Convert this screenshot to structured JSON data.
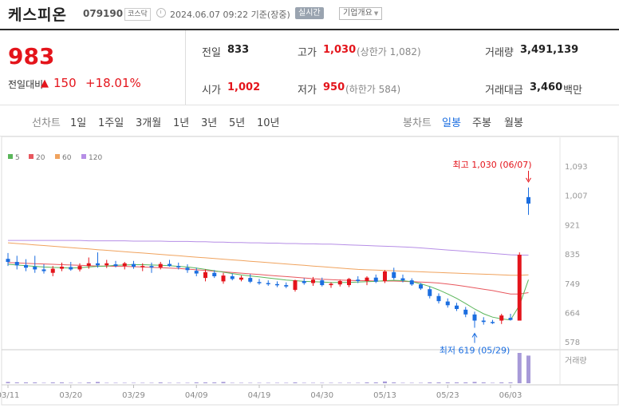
{
  "header": {
    "company_name": "케스피온",
    "company_code": "079190",
    "market_label": "코스닥",
    "datetime": "2024.06.07 09:22 기준(장중)",
    "realtime_label": "실시간",
    "overview_label": "기업개요"
  },
  "price": {
    "current": "983",
    "change_label": "전일대비",
    "change_symbol": "▲",
    "change_amount": "150",
    "change_percent": "+18.01%"
  },
  "stats": {
    "prev_close_label": "전일",
    "prev_close": "833",
    "open_label": "시가",
    "open": "1,002",
    "high_label": "고가",
    "high": "1,030",
    "upper_limit": "(상한가 1,082)",
    "low_label": "저가",
    "low": "950",
    "lower_limit": "(하한가 584)",
    "volume_label": "거래량",
    "volume": "3,491,139",
    "amount_label": "거래대금",
    "amount": "3,460",
    "amount_unit": "백만"
  },
  "periods": {
    "line_chart_label": "선차트",
    "line_tabs": [
      "1일",
      "1주일",
      "3개월",
      "1년",
      "3년",
      "5년",
      "10년"
    ],
    "candle_chart_label": "봉차트",
    "candle_tabs": [
      "일봉",
      "주봉",
      "월봉"
    ],
    "selected_candle_tab": "일봉"
  },
  "colors": {
    "up": "#e4141b",
    "down": "#1b6ee0",
    "ma5": "#5ab65a",
    "ma20": "#e8575e",
    "ma60": "#f0a35e",
    "ma120": "#b68ee6",
    "volume_bar": "#a79ad8"
  },
  "chart_data": {
    "type": "candlestick",
    "legend": [
      {
        "name": "5",
        "color": "#5ab65a"
      },
      {
        "name": "20",
        "color": "#e8575e"
      },
      {
        "name": "60",
        "color": "#f0a35e"
      },
      {
        "name": "120",
        "color": "#b68ee6"
      }
    ],
    "y_ticks": [
      1093,
      1007,
      921,
      835,
      749,
      664,
      578
    ],
    "ylim": [
      578,
      1093
    ],
    "x_ticks": [
      "03/11",
      "03/20",
      "03/29",
      "04/09",
      "04/19",
      "04/30",
      "05/13",
      "05/23",
      "06/03"
    ],
    "x_tick_index": [
      0,
      7,
      14,
      21,
      28,
      35,
      42,
      49,
      56
    ],
    "high_annotation": "최고 1,030 (06/07)",
    "low_annotation": "최저 619 (05/29)",
    "volume_label": "거래량",
    "candles": [
      {
        "o": 821,
        "h": 838,
        "l": 800,
        "c": 812
      },
      {
        "o": 812,
        "h": 830,
        "l": 790,
        "c": 802
      },
      {
        "o": 803,
        "h": 820,
        "l": 785,
        "c": 795
      },
      {
        "o": 798,
        "h": 830,
        "l": 780,
        "c": 790
      },
      {
        "o": 790,
        "h": 805,
        "l": 778,
        "c": 785
      },
      {
        "o": 780,
        "h": 800,
        "l": 770,
        "c": 792
      },
      {
        "o": 792,
        "h": 810,
        "l": 785,
        "c": 798
      },
      {
        "o": 797,
        "h": 812,
        "l": 786,
        "c": 790
      },
      {
        "o": 790,
        "h": 808,
        "l": 784,
        "c": 800
      },
      {
        "o": 800,
        "h": 825,
        "l": 792,
        "c": 808
      },
      {
        "o": 808,
        "h": 840,
        "l": 795,
        "c": 802
      },
      {
        "o": 802,
        "h": 818,
        "l": 794,
        "c": 808
      },
      {
        "o": 805,
        "h": 815,
        "l": 796,
        "c": 800
      },
      {
        "o": 800,
        "h": 812,
        "l": 790,
        "c": 808
      },
      {
        "o": 806,
        "h": 815,
        "l": 792,
        "c": 798
      },
      {
        "o": 798,
        "h": 808,
        "l": 785,
        "c": 800
      },
      {
        "o": 800,
        "h": 810,
        "l": 780,
        "c": 796
      },
      {
        "o": 796,
        "h": 812,
        "l": 790,
        "c": 806
      },
      {
        "o": 806,
        "h": 818,
        "l": 798,
        "c": 800
      },
      {
        "o": 800,
        "h": 810,
        "l": 790,
        "c": 796
      },
      {
        "o": 795,
        "h": 805,
        "l": 780,
        "c": 788
      },
      {
        "o": 786,
        "h": 795,
        "l": 770,
        "c": 778
      },
      {
        "o": 765,
        "h": 790,
        "l": 755,
        "c": 782
      },
      {
        "o": 780,
        "h": 788,
        "l": 765,
        "c": 770
      },
      {
        "o": 755,
        "h": 780,
        "l": 748,
        "c": 772
      },
      {
        "o": 770,
        "h": 778,
        "l": 758,
        "c": 762
      },
      {
        "o": 760,
        "h": 772,
        "l": 755,
        "c": 766
      },
      {
        "o": 765,
        "h": 776,
        "l": 750,
        "c": 754
      },
      {
        "o": 753,
        "h": 762,
        "l": 745,
        "c": 750
      },
      {
        "o": 750,
        "h": 758,
        "l": 742,
        "c": 748
      },
      {
        "o": 747,
        "h": 755,
        "l": 738,
        "c": 744
      },
      {
        "o": 744,
        "h": 752,
        "l": 735,
        "c": 740
      },
      {
        "o": 730,
        "h": 760,
        "l": 725,
        "c": 758
      },
      {
        "o": 756,
        "h": 764,
        "l": 745,
        "c": 750
      },
      {
        "o": 750,
        "h": 768,
        "l": 742,
        "c": 760
      },
      {
        "o": 758,
        "h": 766,
        "l": 740,
        "c": 744
      },
      {
        "o": 744,
        "h": 752,
        "l": 736,
        "c": 748
      },
      {
        "o": 746,
        "h": 760,
        "l": 740,
        "c": 756
      },
      {
        "o": 744,
        "h": 765,
        "l": 738,
        "c": 762
      },
      {
        "o": 760,
        "h": 770,
        "l": 750,
        "c": 756
      },
      {
        "o": 756,
        "h": 770,
        "l": 744,
        "c": 766
      },
      {
        "o": 766,
        "h": 775,
        "l": 750,
        "c": 754
      },
      {
        "o": 756,
        "h": 788,
        "l": 750,
        "c": 784
      },
      {
        "o": 782,
        "h": 795,
        "l": 760,
        "c": 765
      },
      {
        "o": 764,
        "h": 775,
        "l": 752,
        "c": 758
      },
      {
        "o": 758,
        "h": 764,
        "l": 742,
        "c": 746
      },
      {
        "o": 746,
        "h": 750,
        "l": 730,
        "c": 734
      },
      {
        "o": 732,
        "h": 740,
        "l": 705,
        "c": 712
      },
      {
        "o": 712,
        "h": 720,
        "l": 690,
        "c": 697
      },
      {
        "o": 696,
        "h": 705,
        "l": 678,
        "c": 685
      },
      {
        "o": 684,
        "h": 692,
        "l": 668,
        "c": 674
      },
      {
        "o": 672,
        "h": 680,
        "l": 650,
        "c": 658
      },
      {
        "o": 658,
        "h": 666,
        "l": 619,
        "c": 640
      },
      {
        "o": 640,
        "h": 650,
        "l": 628,
        "c": 636
      },
      {
        "o": 636,
        "h": 642,
        "l": 630,
        "c": 633
      },
      {
        "o": 640,
        "h": 660,
        "l": 630,
        "c": 655
      },
      {
        "o": 648,
        "h": 660,
        "l": 640,
        "c": 642
      },
      {
        "o": 640,
        "h": 840,
        "l": 640,
        "c": 833
      },
      {
        "o": 1002,
        "h": 1030,
        "l": 950,
        "c": 983
      }
    ],
    "ma5": [
      805,
      803,
      801,
      799,
      797,
      796,
      795,
      794,
      795,
      797,
      799,
      800,
      802,
      803,
      804,
      804,
      803,
      802,
      801,
      799,
      797,
      794,
      790,
      786,
      782,
      778,
      774,
      771,
      768,
      765,
      762,
      759,
      757,
      755,
      754,
      753,
      752,
      752,
      752,
      753,
      754,
      755,
      757,
      758,
      757,
      754,
      748,
      740,
      730,
      718,
      705,
      690,
      674,
      660,
      650,
      645,
      642,
      685,
      760
    ],
    "ma20": [
      810,
      809,
      808,
      807,
      806,
      805,
      804,
      803,
      802,
      801,
      800,
      800,
      799,
      799,
      798,
      797,
      796,
      795,
      794,
      793,
      791,
      789,
      787,
      785,
      783,
      781,
      779,
      777,
      775,
      773,
      771,
      769,
      767,
      765,
      763,
      761,
      760,
      759,
      758,
      757,
      757,
      756,
      756,
      756,
      755,
      754,
      753,
      752,
      750,
      747,
      744,
      740,
      736,
      732,
      728,
      723,
      718,
      718,
      722
    ],
    "ma60": [
      868,
      866,
      864,
      862,
      860,
      858,
      856,
      854,
      852,
      850,
      848,
      846,
      844,
      842,
      840,
      838,
      836,
      834,
      832,
      830,
      828,
      826,
      824,
      822,
      820,
      818,
      816,
      814,
      812,
      810,
      808,
      806,
      804,
      802,
      800,
      798,
      796,
      794,
      792,
      790,
      789,
      788,
      787,
      786,
      785,
      784,
      783,
      782,
      781,
      780,
      779,
      778,
      777,
      776,
      775,
      774,
      773,
      773,
      774
    ],
    "ma120": [
      875,
      875,
      875,
      875,
      875,
      875,
      875,
      875,
      875,
      874,
      874,
      874,
      874,
      874,
      873,
      873,
      873,
      873,
      872,
      872,
      872,
      871,
      871,
      870,
      870,
      869,
      869,
      868,
      868,
      867,
      867,
      866,
      866,
      865,
      865,
      864,
      864,
      863,
      862,
      861,
      860,
      859,
      858,
      857,
      856,
      855,
      853,
      851,
      849,
      847,
      845,
      843,
      841,
      839,
      837,
      835,
      833,
      832,
      832
    ],
    "volume": [
      3,
      2,
      2,
      2,
      1,
      2,
      2,
      1,
      1,
      2,
      3,
      1,
      1,
      1,
      1,
      1,
      1,
      2,
      1,
      1,
      1,
      2,
      2,
      2,
      3,
      1,
      1,
      1,
      1,
      1,
      1,
      1,
      2,
      1,
      1,
      1,
      1,
      1,
      1,
      1,
      2,
      2,
      4,
      2,
      1,
      1,
      1,
      2,
      2,
      2,
      2,
      2,
      3,
      2,
      1,
      2,
      2,
      68,
      62
    ]
  }
}
